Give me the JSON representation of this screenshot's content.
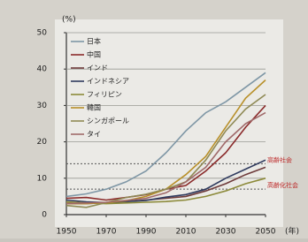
{
  "chart_data": {
    "type": "line",
    "y_label": "(%)",
    "x_label": "(年)",
    "x": [
      1950,
      1960,
      1970,
      1980,
      1990,
      2000,
      2010,
      2020,
      2030,
      2040,
      2050
    ],
    "xlim": [
      1950,
      2050
    ],
    "xticks": [
      1950,
      1970,
      1990,
      2010,
      2030,
      2050
    ],
    "ylim": [
      0,
      50
    ],
    "yticks": [
      0,
      10,
      20,
      30,
      40,
      50
    ],
    "grid": true,
    "reference_lines": [
      {
        "value": 14,
        "label": "高齢社会"
      },
      {
        "value": 7,
        "label": "高齢化社会"
      }
    ],
    "series": [
      {
        "name": "日本",
        "color": "#7f97a6",
        "values": [
          5,
          5.7,
          7,
          9,
          12,
          17,
          23,
          28,
          31,
          35,
          39
        ]
      },
      {
        "name": "中国",
        "color": "#8a2a2a",
        "values": [
          4.5,
          4.7,
          4,
          4.7,
          5.5,
          7,
          8,
          12,
          17,
          24,
          30
        ]
      },
      {
        "name": "インド",
        "color": "#6e3b3b",
        "values": [
          3,
          3,
          3.3,
          3.6,
          4,
          4.5,
          5,
          6.5,
          8.5,
          11,
          13
        ]
      },
      {
        "name": "インドネシア",
        "color": "#2f3a5e",
        "values": [
          4,
          3.5,
          3.3,
          3.6,
          3.9,
          4.8,
          5.5,
          7,
          10,
          12.5,
          15
        ]
      },
      {
        "name": "フィリピン",
        "color": "#8c8a3a",
        "values": [
          3.5,
          3.2,
          3,
          3.2,
          3.4,
          3.6,
          4,
          5,
          6.5,
          8.5,
          10
        ]
      },
      {
        "name": "韓国",
        "color": "#b8902a",
        "values": [
          3,
          3,
          3.3,
          3.8,
          5,
          7,
          11,
          16,
          24,
          32,
          37
        ]
      },
      {
        "name": "シンガポール",
        "color": "#8f8a55",
        "values": [
          2.5,
          2,
          3.3,
          4.7,
          5.6,
          7,
          9,
          15,
          23,
          29,
          33
        ]
      },
      {
        "name": "タイ",
        "color": "#a06a6a",
        "values": [
          3,
          3.2,
          3.4,
          3.9,
          4.5,
          6,
          9,
          13,
          20,
          25,
          28
        ]
      }
    ]
  }
}
